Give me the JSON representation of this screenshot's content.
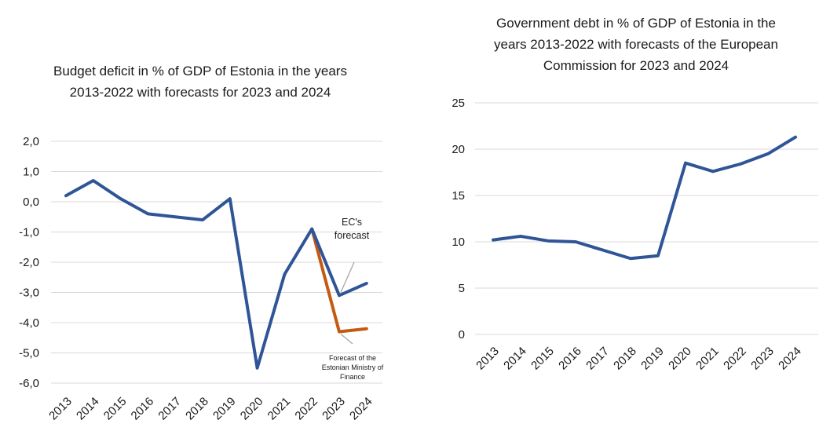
{
  "chart_data": [
    {
      "type": "line",
      "title": "Budget deficit in % of GDP of Estonia in the years 2013-2022 with forecasts for 2023 and 2024",
      "categories": [
        "2013",
        "2014",
        "2015",
        "2016",
        "2017",
        "2018",
        "2019",
        "2020",
        "2021",
        "2022",
        "2023",
        "2024"
      ],
      "ylim": [
        -6,
        2
      ],
      "yticks": [
        "2,0",
        "1,0",
        "0,0",
        "-1,0",
        "-2,0",
        "-3,0",
        "-4,0",
        "-5,0",
        "-6,0"
      ],
      "ytick_values": [
        2,
        1,
        0,
        -1,
        -2,
        -3,
        -4,
        -5,
        -6
      ],
      "grid": true,
      "series": [
        {
          "values": [
            0.2,
            0.7,
            0.1,
            -0.4,
            -0.5,
            -0.6,
            0.1,
            -5.5,
            -2.4,
            -0.9,
            -3.1,
            -2.7
          ],
          "color": "#2f5597"
        },
        {
          "values": [
            null,
            null,
            null,
            null,
            null,
            null,
            null,
            null,
            null,
            -0.9,
            -4.3,
            -4.2
          ],
          "color": "#c55a11"
        }
      ],
      "annotations": [
        {
          "text": "EC's forecast",
          "x": "2023"
        },
        {
          "text": "Forecast of the Estonian Ministry of Finance",
          "x": "2023"
        }
      ]
    },
    {
      "type": "line",
      "title": "Government debt in % of GDP of Estonia in the years 2013-2022 with forecasts of the European Commission for 2023 and 2024",
      "categories": [
        "2013",
        "2014",
        "2015",
        "2016",
        "2017",
        "2018",
        "2019",
        "2020",
        "2021",
        "2022",
        "2023",
        "2024"
      ],
      "ylim": [
        0,
        25
      ],
      "yticks": [
        "25",
        "20",
        "15",
        "10",
        "5",
        "0"
      ],
      "ytick_values": [
        25,
        20,
        15,
        10,
        5,
        0
      ],
      "grid": true,
      "series": [
        {
          "values": [
            10.2,
            10.6,
            10.1,
            10.0,
            9.1,
            8.2,
            8.5,
            18.5,
            17.6,
            18.4,
            19.5,
            21.3
          ],
          "color": "#2f5597"
        }
      ]
    }
  ]
}
